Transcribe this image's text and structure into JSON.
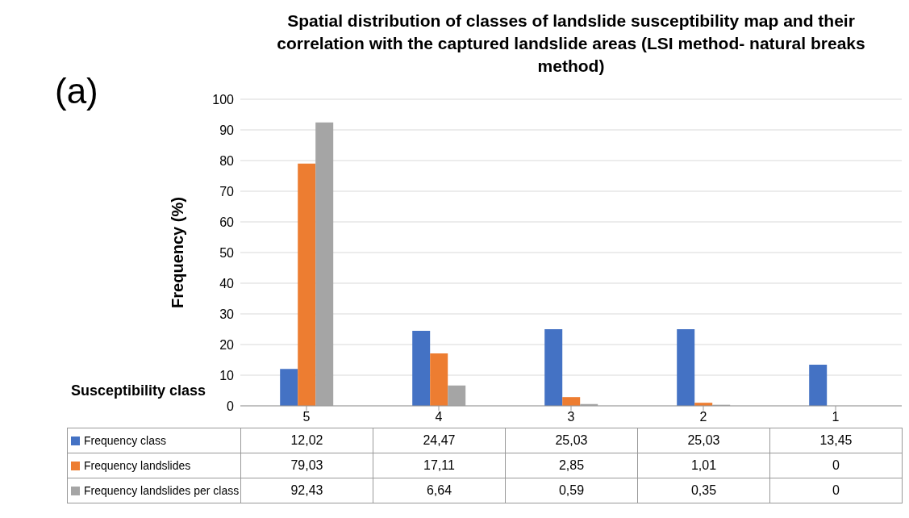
{
  "chart_data": {
    "type": "bar",
    "title": "Spatial distribution of classes of landslide susceptibility map and their correlation with the captured landslide areas (LSI method- natural breaks method)",
    "ylabel": "Frequency (%)",
    "xlabel": "Susceptibility class",
    "annotations": [
      "(a)"
    ],
    "categories": [
      "5",
      "4",
      "3",
      "2",
      "1"
    ],
    "series": [
      {
        "name": "Frequency class",
        "color": "#4472c4",
        "values": [
          12.02,
          24.47,
          25.03,
          25.03,
          13.45
        ],
        "value_labels": [
          "12,02",
          "24,47",
          "25,03",
          "25,03",
          "13,45"
        ]
      },
      {
        "name": "Frequency landslides",
        "color": "#ed7d31",
        "values": [
          79.03,
          17.11,
          2.85,
          1.01,
          0
        ],
        "value_labels": [
          "79,03",
          "17,11",
          "2,85",
          "1,01",
          "0"
        ]
      },
      {
        "name": "Frequency landslides per class",
        "color": "#a5a5a5",
        "values": [
          92.43,
          6.64,
          0.59,
          0.35,
          0
        ],
        "value_labels": [
          "92,43",
          "6,64",
          "0,59",
          "0,35",
          "0"
        ]
      }
    ],
    "ylim": [
      0,
      100
    ],
    "yticks": [
      0,
      10,
      20,
      30,
      40,
      50,
      60,
      70,
      80,
      90,
      100
    ],
    "grid": "y",
    "legend": "bottom"
  }
}
